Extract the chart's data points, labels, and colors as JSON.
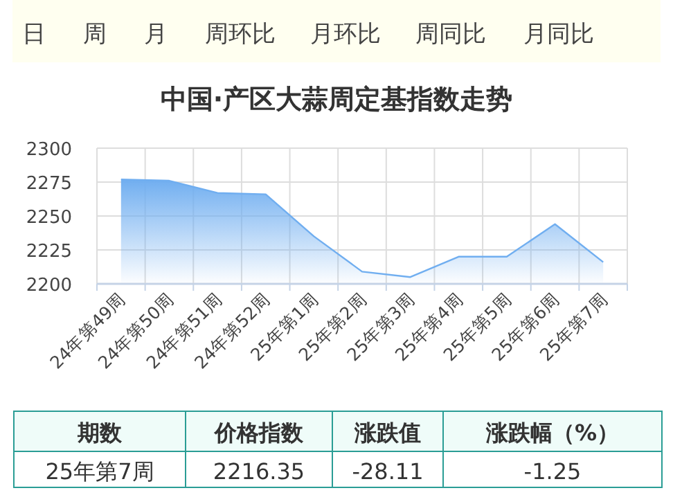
{
  "chart_data": [
    {
      "type": "other",
      "annotations": [
        "日",
        "周",
        "月",
        "周环比",
        "月环比",
        "周同比",
        "月同比"
      ]
    },
    {
      "type": "area",
      "title": "中国·产区大蒜周定基指数走势",
      "categories": [
        "24年第49周",
        "24年第50周",
        "24年第51周",
        "24年第52周",
        "25年第1周",
        "25年第2周",
        "25年第3周",
        "25年第4周",
        "25年第5周",
        "25年第6周",
        "25年第7周"
      ],
      "values": [
        2277,
        2276,
        2267,
        2266,
        2235,
        2209,
        2205,
        2220,
        2220,
        2244,
        2216
      ],
      "color": "#70aef0",
      "ylim": [
        2200,
        2300
      ],
      "yticks": [
        2200,
        2225,
        2250,
        2275,
        2300
      ],
      "grid": true
    },
    {
      "type": "other",
      "categories": [
        "期数",
        "价格指数",
        "涨跌值",
        "涨跌幅（%）"
      ],
      "annotations": [
        "25年第7周",
        "2216.35",
        "-28.11",
        "-1.25"
      ]
    }
  ]
}
